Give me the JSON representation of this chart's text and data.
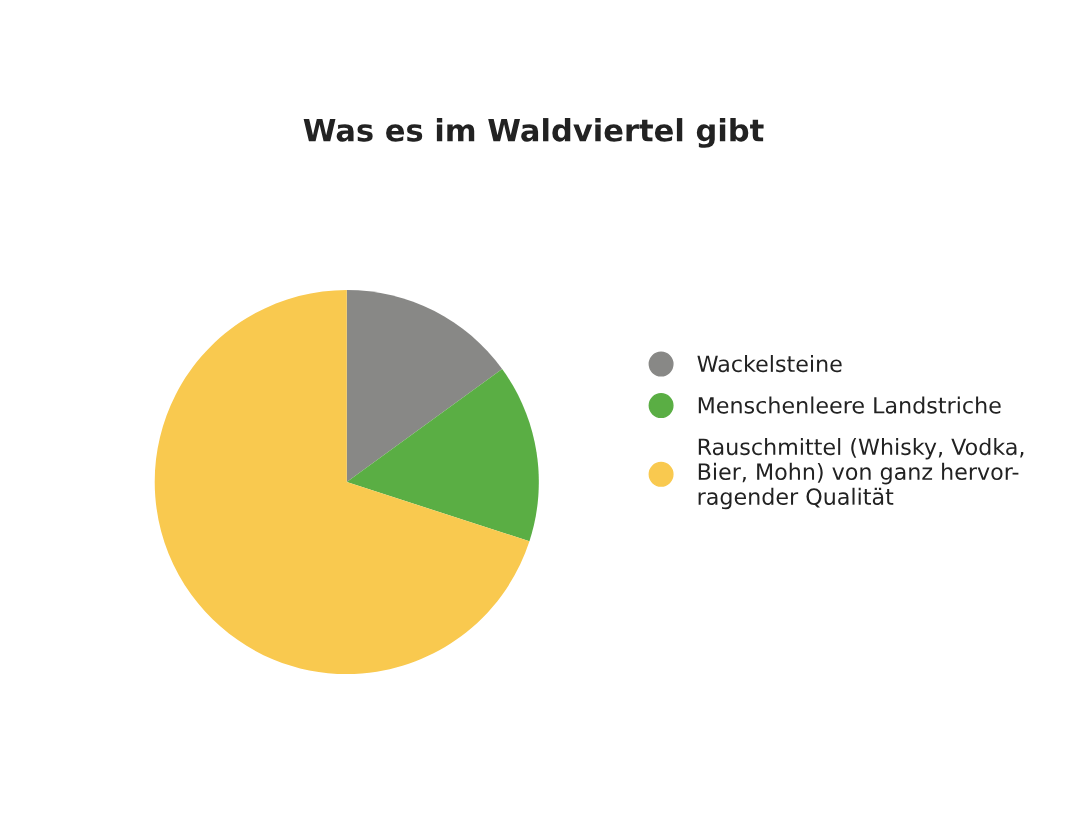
{
  "chart_data": {
    "type": "pie",
    "title": "Was es im Waldviertel gibt",
    "categories": [
      "Wackelsteine",
      "Menschenleere Landstriche",
      "Rauschmittel (Whisky, Vodka,\nBier, Mohn) von ganz hervor-\nragender Qualität"
    ],
    "values": [
      15,
      15,
      70
    ],
    "colors": [
      "#888886",
      "#5aae44",
      "#f9c94f"
    ],
    "legend": "right"
  }
}
